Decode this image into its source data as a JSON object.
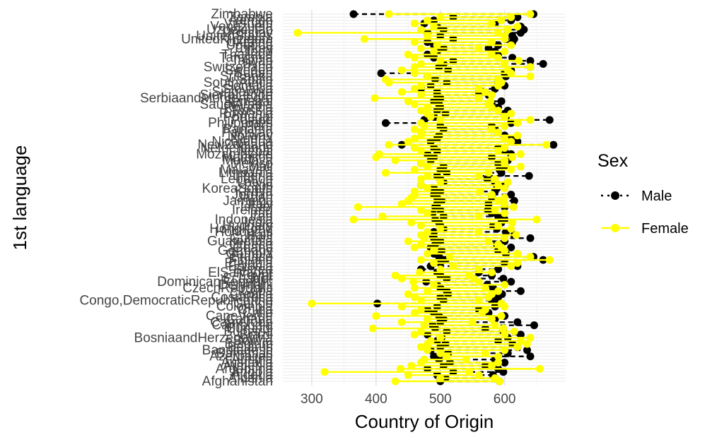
{
  "chart_data": {
    "type": "scatter",
    "title": "",
    "xlabel": "Country of Origin",
    "ylabel": "1st language",
    "xlim": [
      255,
      695
    ],
    "xticks": [
      300,
      400,
      500,
      600
    ],
    "grid": true,
    "legend_position": "right",
    "legend_title": "Sex",
    "categories": [
      "Afghanistan",
      "Albania",
      "Algeria",
      "Angola",
      "Argentina",
      "Armenia",
      "Australia",
      "Austria",
      "Azerbaijan",
      "Bahamas",
      "Bangladesh",
      "Belarus",
      "Belgium",
      "Bolivia",
      "BosniaandHerzegovina",
      "Brazil",
      "Bulgaria",
      "Burundi",
      "Cambodia",
      "Cameroon",
      "Canada",
      "CapeVerde",
      "Chile",
      "China",
      "Colombia",
      "Congo",
      "Congo,DemocraticRepublicofthe",
      "CostaRica",
      "Croatia",
      "Cuba",
      "CzechRepublic",
      "Denmark",
      "DominicanRepublic",
      "Ecuador",
      "Egypt",
      "ElSalvador",
      "Eritrea",
      "Estonia",
      "Ethiopia",
      "Finland",
      "France",
      "Gambia",
      "Germany",
      "Ghana",
      "Greece",
      "Guatemala",
      "Guinea",
      "Haiti",
      "Honduras",
      "HongKong",
      "Hungary",
      "India",
      "Indonesia",
      "Iran",
      "Iraq",
      "Ireland",
      "Israel",
      "Italy",
      "Jamaica",
      "Japan",
      "Jordan",
      "Kenya",
      "KoreaSouth",
      "Laos",
      "Latvia",
      "Lebanon",
      "Liberia",
      "Lithuania",
      "Malaysia",
      "Mali",
      "Mexico",
      "Moldova",
      "Morocco",
      "Mozambique",
      "Nepal",
      "Netherlands",
      "NewZealand",
      "Nicaragua",
      "Nigeria",
      "Norway",
      "Pakistan",
      "Panama",
      "Peru",
      "Philippines",
      "Poland",
      "Portugal",
      "Romania",
      "Russia",
      "Rwanda",
      "SaudiArabia",
      "Senegal",
      "SerbiaandMontenegro",
      "SierraLeone",
      "Singapore",
      "Slovakia",
      "Somalia",
      "SouthAfrica",
      "Spain",
      "SriLanka",
      "Sudan",
      "Sweden",
      "Switzerland",
      "Syria",
      "Taiwan",
      "Tanzania",
      "Thailand",
      "Togo",
      "Turkey",
      "Uganda",
      "Ukraine",
      "UnitedKingdom",
      "UnitedStates",
      "Uruguay",
      "Uzbekistan",
      "Venezuela",
      "Vietnam",
      "Yemen",
      "Zambia",
      "Zimbabwe"
    ],
    "series": [
      {
        "name": "Male",
        "color": "#000000",
        "line": "dashed",
        "ranges": [
          [
            500,
            592
          ],
          [
            508,
            585
          ],
          [
            495,
            582
          ],
          [
            520,
            598
          ],
          [
            480,
            590
          ],
          [
            505,
            570
          ],
          [
            515,
            600
          ],
          [
            498,
            585
          ],
          [
            490,
            640
          ],
          [
            512,
            605
          ],
          [
            485,
            635
          ],
          [
            500,
            620
          ],
          [
            508,
            612
          ],
          [
            495,
            590
          ],
          [
            502,
            605
          ],
          [
            480,
            625
          ],
          [
            510,
            598
          ],
          [
            492,
            570
          ],
          [
            488,
            646
          ],
          [
            500,
            620
          ],
          [
            505,
            585
          ],
          [
            498,
            600
          ],
          [
            490,
            575
          ],
          [
            480,
            560
          ],
          [
            495,
            585
          ],
          [
            402,
            590
          ],
          [
            505,
            580
          ],
          [
            500,
            590
          ],
          [
            512,
            596
          ],
          [
            510,
            625
          ],
          [
            500,
            582
          ],
          [
            495,
            573
          ],
          [
            478,
            610
          ],
          [
            510,
            598
          ],
          [
            500,
            580
          ],
          [
            495,
            560
          ],
          [
            470,
            590
          ],
          [
            485,
            620
          ],
          [
            500,
            600
          ],
          [
            508,
            660
          ],
          [
            498,
            645
          ],
          [
            490,
            602
          ],
          [
            502,
            590
          ],
          [
            485,
            610
          ],
          [
            492,
            588
          ],
          [
            500,
            600
          ],
          [
            490,
            640
          ],
          [
            488,
            615
          ],
          [
            490,
            602
          ],
          [
            505,
            588
          ],
          [
            500,
            582
          ],
          [
            498,
            595
          ],
          [
            492,
            600
          ],
          [
            505,
            590
          ],
          [
            488,
            580
          ],
          [
            500,
            574
          ],
          [
            492,
            600
          ],
          [
            495,
            575
          ],
          [
            502,
            615
          ],
          [
            495,
            580
          ],
          [
            490,
            610
          ],
          [
            500,
            585
          ],
          [
            490,
            588
          ],
          [
            470,
            600
          ],
          [
            505,
            585
          ],
          [
            500,
            573
          ],
          [
            495,
            638
          ],
          [
            510,
            595
          ],
          [
            500,
            592
          ],
          [
            505,
            600
          ],
          [
            470,
            590
          ],
          [
            485,
            605
          ],
          [
            490,
            580
          ],
          [
            480,
            610
          ],
          [
            495,
            600
          ],
          [
            490,
            590
          ],
          [
            440,
            676
          ],
          [
            485,
            620
          ],
          [
            495,
            610
          ],
          [
            498,
            600
          ],
          [
            470,
            590
          ],
          [
            505,
            585
          ],
          [
            500,
            580
          ],
          [
            415,
            610
          ],
          [
            475,
            670
          ],
          [
            490,
            602
          ],
          [
            508,
            600
          ],
          [
            495,
            605
          ],
          [
            500,
            590
          ],
          [
            498,
            580
          ],
          [
            490,
            595
          ],
          [
            500,
            560
          ],
          [
            495,
            575
          ],
          [
            495,
            560
          ],
          [
            470,
            585
          ],
          [
            485,
            600
          ],
          [
            510,
            590
          ],
          [
            492,
            590
          ],
          [
            480,
            602
          ],
          [
            408,
            600
          ],
          [
            512,
            610
          ],
          [
            498,
            640
          ],
          [
            505,
            660
          ],
          [
            520,
            640
          ],
          [
            490,
            612
          ],
          [
            480,
            590
          ],
          [
            495,
            585
          ],
          [
            505,
            575
          ],
          [
            490,
            590
          ],
          [
            480,
            612
          ],
          [
            520,
            615
          ],
          [
            500,
            612
          ],
          [
            480,
            625
          ],
          [
            505,
            630
          ],
          [
            495,
            625
          ],
          [
            475,
            585
          ],
          [
            490,
            610
          ],
          [
            520,
            620
          ],
          [
            365,
            645
          ]
        ]
      },
      {
        "name": "Female",
        "color": "#ffff00",
        "line": "solid",
        "ranges": [
          [
            430,
            592
          ],
          [
            500,
            585
          ],
          [
            450,
            560
          ],
          [
            320,
            545
          ],
          [
            438,
            655
          ],
          [
            455,
            580
          ],
          [
            470,
            590
          ],
          [
            475,
            540
          ],
          [
            510,
            590
          ],
          [
            500,
            570
          ],
          [
            480,
            600
          ],
          [
            470,
            620
          ],
          [
            480,
            635
          ],
          [
            485,
            625
          ],
          [
            500,
            640
          ],
          [
            460,
            600
          ],
          [
            470,
            615
          ],
          [
            395,
            598
          ],
          [
            475,
            585
          ],
          [
            440,
            550
          ],
          [
            480,
            580
          ],
          [
            400,
            595
          ],
          [
            460,
            565
          ],
          [
            470,
            570
          ],
          [
            440,
            600
          ],
          [
            300,
            595
          ],
          [
            470,
            560
          ],
          [
            460,
            575
          ],
          [
            450,
            580
          ],
          [
            480,
            590
          ],
          [
            460,
            570
          ],
          [
            490,
            600
          ],
          [
            458,
            560
          ],
          [
            440,
            552
          ],
          [
            430,
            545
          ],
          [
            468,
            580
          ],
          [
            500,
            560
          ],
          [
            520,
            610
          ],
          [
            490,
            620
          ],
          [
            470,
            670
          ],
          [
            515,
            640
          ],
          [
            480,
            620
          ],
          [
            490,
            600
          ],
          [
            460,
            595
          ],
          [
            470,
            590
          ],
          [
            450,
            575
          ],
          [
            475,
            600
          ],
          [
            470,
            618
          ],
          [
            480,
            560
          ],
          [
            500,
            610
          ],
          [
            470,
            590
          ],
          [
            455,
            612
          ],
          [
            365,
            650
          ],
          [
            410,
            560
          ],
          [
            480,
            600
          ],
          [
            470,
            585
          ],
          [
            372,
            614
          ],
          [
            440,
            600
          ],
          [
            450,
            590
          ],
          [
            455,
            600
          ],
          [
            460,
            580
          ],
          [
            460,
            562
          ],
          [
            480,
            600
          ],
          [
            470,
            590
          ],
          [
            500,
            605
          ],
          [
            470,
            585
          ],
          [
            480,
            560
          ],
          [
            415,
            575
          ],
          [
            460,
            610
          ],
          [
            480,
            625
          ],
          [
            470,
            600
          ],
          [
            430,
            600
          ],
          [
            400,
            612
          ],
          [
            405,
            625
          ],
          [
            470,
            590
          ],
          [
            460,
            600
          ],
          [
            420,
            665
          ],
          [
            450,
            610
          ],
          [
            460,
            600
          ],
          [
            470,
            620
          ],
          [
            470,
            590
          ],
          [
            460,
            580
          ],
          [
            475,
            600
          ],
          [
            470,
            620
          ],
          [
            500,
            640
          ],
          [
            485,
            600
          ],
          [
            480,
            610
          ],
          [
            470,
            590
          ],
          [
            480,
            580
          ],
          [
            460,
            575
          ],
          [
            450,
            578
          ],
          [
            398,
            560
          ],
          [
            470,
            580
          ],
          [
            440,
            570
          ],
          [
            460,
            560
          ],
          [
            470,
            590
          ],
          [
            420,
            595
          ],
          [
            415,
            590
          ],
          [
            480,
            640
          ],
          [
            460,
            610
          ],
          [
            440,
            605
          ],
          [
            460,
            640
          ],
          [
            470,
            600
          ],
          [
            500,
            622
          ],
          [
            460,
            590
          ],
          [
            450,
            580
          ],
          [
            490,
            600
          ],
          [
            470,
            560
          ],
          [
            495,
            610
          ],
          [
            460,
            580
          ],
          [
            382,
            600
          ],
          [
            480,
            600
          ],
          [
            278,
            590
          ],
          [
            470,
            605
          ],
          [
            490,
            620
          ],
          [
            460,
            580
          ],
          [
            480,
            595
          ],
          [
            500,
            610
          ],
          [
            420,
            640
          ]
        ]
      }
    ]
  }
}
